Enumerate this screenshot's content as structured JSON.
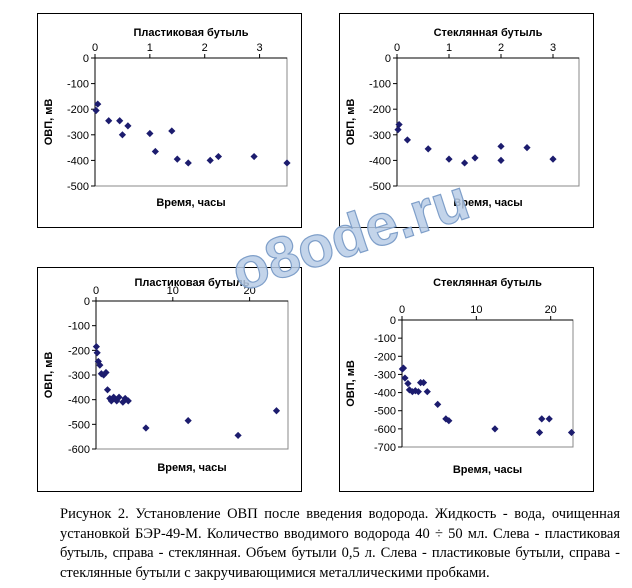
{
  "watermark": "o8ode.ru",
  "caption": "Рисунок 2. Установление ОВП после введения водорода. Жидкость - вода, очищенная установкой БЭР-49-М. Количество вводимого водорода 40 ÷ 50 мл. Слева - пластиковая бутыль, справа - стеклянная. Объем бутыли 0,5 л. Слева - пластиковые бутыли, справа - стеклянные бутыли с закручивающимися металлическими пробками.",
  "colors": {
    "marker": "#1c1c6e",
    "frame": "#000000"
  },
  "chart_data": [
    {
      "type": "scatter",
      "title": "Пластиковая бутыль",
      "xlabel": "Время, часы",
      "ylabel": "ОВП, мВ",
      "xlim": [
        0,
        3.5
      ],
      "ylim": [
        -500,
        0
      ],
      "xticks": [
        0,
        1,
        2,
        3
      ],
      "yticks": [
        0,
        -100,
        -200,
        -300,
        -400,
        -500
      ],
      "marker": "diamond",
      "points": [
        [
          0.02,
          -205
        ],
        [
          0.05,
          -180
        ],
        [
          0.25,
          -245
        ],
        [
          0.45,
          -245
        ],
        [
          0.5,
          -300
        ],
        [
          0.6,
          -265
        ],
        [
          1.0,
          -295
        ],
        [
          1.1,
          -365
        ],
        [
          1.4,
          -285
        ],
        [
          1.5,
          -395
        ],
        [
          1.7,
          -410
        ],
        [
          2.1,
          -400
        ],
        [
          2.25,
          -385
        ],
        [
          2.9,
          -385
        ],
        [
          3.5,
          -410
        ]
      ]
    },
    {
      "type": "scatter",
      "title": "Стеклянная бутыль",
      "xlabel": "Время, часы",
      "ylabel": "ОВП, мВ",
      "xlim": [
        0,
        3.5
      ],
      "ylim": [
        -500,
        0
      ],
      "xticks": [
        0,
        1,
        2,
        3
      ],
      "yticks": [
        0,
        -100,
        -200,
        -300,
        -400,
        -500
      ],
      "marker": "diamond",
      "points": [
        [
          0.02,
          -280
        ],
        [
          0.04,
          -260
        ],
        [
          0.2,
          -320
        ],
        [
          0.6,
          -355
        ],
        [
          1.0,
          -395
        ],
        [
          1.3,
          -410
        ],
        [
          1.5,
          -390
        ],
        [
          2.0,
          -400
        ],
        [
          2.0,
          -345
        ],
        [
          2.5,
          -350
        ],
        [
          3.0,
          -395
        ]
      ]
    },
    {
      "type": "scatter",
      "title": "Пластиковая бутыль",
      "xlabel": "Время, часы",
      "ylabel": "ОВП, мВ",
      "xlim": [
        0,
        25
      ],
      "ylim": [
        -600,
        0
      ],
      "xticks": [
        0,
        10,
        20
      ],
      "yticks": [
        0,
        -100,
        -200,
        -300,
        -400,
        -500,
        -600
      ],
      "marker": "diamond",
      "points": [
        [
          0.05,
          -185
        ],
        [
          0.15,
          -210
        ],
        [
          0.3,
          -245
        ],
        [
          0.5,
          -260
        ],
        [
          0.7,
          -295
        ],
        [
          1.0,
          -300
        ],
        [
          1.3,
          -290
        ],
        [
          1.5,
          -360
        ],
        [
          1.8,
          -395
        ],
        [
          2.0,
          -405
        ],
        [
          2.3,
          -390
        ],
        [
          2.7,
          -405
        ],
        [
          3.0,
          -390
        ],
        [
          3.5,
          -410
        ],
        [
          3.8,
          -395
        ],
        [
          4.2,
          -405
        ],
        [
          6.5,
          -515
        ],
        [
          12.0,
          -485
        ],
        [
          18.5,
          -545
        ],
        [
          23.5,
          -445
        ]
      ]
    },
    {
      "type": "scatter",
      "title": "Стеклянная бутыль",
      "xlabel": "Время, часы",
      "ylabel": "ОВП, мВ",
      "xlim": [
        0,
        23
      ],
      "ylim": [
        -700,
        0
      ],
      "xticks": [
        0,
        10,
        20
      ],
      "yticks": [
        0,
        -100,
        -200,
        -300,
        -400,
        -500,
        -600,
        -700
      ],
      "marker": "diamond",
      "points": [
        [
          0.05,
          -270
        ],
        [
          0.2,
          -265
        ],
        [
          0.4,
          -320
        ],
        [
          0.8,
          -350
        ],
        [
          1.0,
          -385
        ],
        [
          1.4,
          -395
        ],
        [
          1.8,
          -390
        ],
        [
          2.2,
          -395
        ],
        [
          2.5,
          -345
        ],
        [
          2.9,
          -345
        ],
        [
          3.4,
          -395
        ],
        [
          4.8,
          -465
        ],
        [
          5.9,
          -545
        ],
        [
          6.3,
          -555
        ],
        [
          12.5,
          -600
        ],
        [
          18.5,
          -620
        ],
        [
          18.8,
          -545
        ],
        [
          19.8,
          -545
        ],
        [
          22.8,
          -620
        ]
      ]
    }
  ]
}
